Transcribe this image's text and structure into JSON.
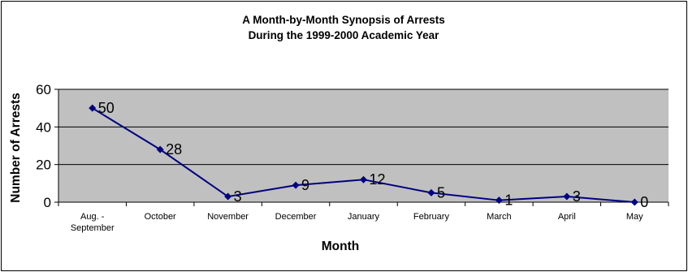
{
  "chart_data": {
    "type": "line",
    "title": "A Month-by-Month Synopsis of Arrests",
    "subtitle": "During the 1999-2000 Academic Year",
    "xlabel": "Month",
    "ylabel": "Number of Arrests",
    "categories": [
      "Aug. - September",
      "October",
      "November",
      "December",
      "January",
      "February",
      "March",
      "April",
      "May"
    ],
    "category_lines": [
      [
        "Aug. -",
        "September"
      ],
      [
        "October"
      ],
      [
        "November"
      ],
      [
        "December"
      ],
      [
        "January"
      ],
      [
        "February"
      ],
      [
        "March"
      ],
      [
        "April"
      ],
      [
        "May"
      ]
    ],
    "series": [
      {
        "values": [
          50,
          28,
          3,
          9,
          12,
          5,
          1,
          3,
          0
        ]
      }
    ],
    "ylim": [
      0,
      60
    ],
    "yticks": [
      "0",
      "20",
      "40",
      "60"
    ],
    "data_labels": [
      "50",
      "28",
      "3",
      "9",
      "12",
      "5",
      "1",
      "3",
      "0"
    ],
    "grid": true,
    "legend": "none",
    "colors": {
      "line": "#000080",
      "marker": "#000080",
      "plot_background": "#c0c0c0",
      "gridline": "#000000"
    }
  }
}
